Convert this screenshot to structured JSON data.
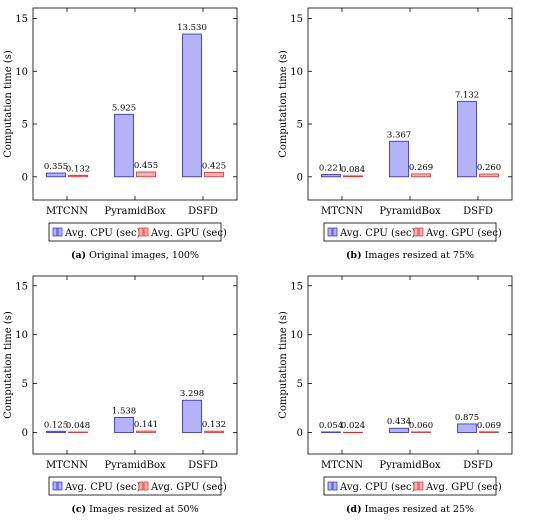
{
  "legend": {
    "cpu": "Avg. CPU (sec)",
    "gpu": "Avg. GPU (sec)"
  },
  "colors": {
    "cpu_fill": "#b3b3f5",
    "cpu_stroke": "#2222ee",
    "gpu_fill": "#f5b3b3",
    "gpu_stroke": "#ee2222"
  },
  "chart_data": [
    {
      "type": "bar",
      "caption_label": "(a)",
      "caption_text": "Original images, 100%",
      "categories": [
        "MTCNN",
        "PyramidBox",
        "DSFD"
      ],
      "series": [
        {
          "name": "Avg. CPU (sec)",
          "values": [
            0.355,
            5.925,
            13.53
          ],
          "labels": [
            "0.355",
            "5.925",
            "13.530"
          ]
        },
        {
          "name": "Avg. GPU (sec)",
          "values": [
            0.132,
            0.455,
            0.425
          ],
          "labels": [
            "0.132",
            "0.455",
            "0.425"
          ]
        }
      ],
      "ylabel": "Computation time (s)",
      "ylim": [
        -2.2,
        16
      ],
      "yticks": [
        0,
        5,
        10,
        15
      ],
      "ytick_labels": [
        "0",
        "5",
        "10",
        "15"
      ],
      "legend_position": "bottom"
    },
    {
      "type": "bar",
      "caption_label": "(b)",
      "caption_text": "Images resized at 75%",
      "categories": [
        "MTCNN",
        "PyramidBox",
        "DSFD"
      ],
      "series": [
        {
          "name": "Avg. CPU (sec)",
          "values": [
            0.221,
            3.367,
            7.132
          ],
          "labels": [
            "0.221",
            "3.367",
            "7.132"
          ]
        },
        {
          "name": "Avg. GPU (sec)",
          "values": [
            0.084,
            0.269,
            0.26
          ],
          "labels": [
            "0.084",
            "0.269",
            "0.260"
          ]
        }
      ],
      "ylabel": "Computation time (s)",
      "ylim": [
        -2.2,
        16
      ],
      "yticks": [
        0,
        5,
        10,
        15
      ],
      "ytick_labels": [
        "0",
        "5",
        "10",
        "15"
      ],
      "legend_position": "bottom"
    },
    {
      "type": "bar",
      "caption_label": "(c)",
      "caption_text": "Images resized at 50%",
      "categories": [
        "MTCNN",
        "PyramidBox",
        "DSFD"
      ],
      "series": [
        {
          "name": "Avg. CPU (sec)",
          "values": [
            0.125,
            1.538,
            3.298
          ],
          "labels": [
            "0.125",
            "1.538",
            "3.298"
          ]
        },
        {
          "name": "Avg. GPU (sec)",
          "values": [
            0.048,
            0.141,
            0.132
          ],
          "labels": [
            "0.048",
            "0.141",
            "0.132"
          ]
        }
      ],
      "ylabel": "Computation time (s)",
      "ylim": [
        -2.2,
        16
      ],
      "yticks": [
        0,
        5,
        10,
        15
      ],
      "ytick_labels": [
        "0",
        "5",
        "10",
        "15"
      ],
      "legend_position": "bottom"
    },
    {
      "type": "bar",
      "caption_label": "(d)",
      "caption_text": "Images resized at 25%",
      "categories": [
        "MTCNN",
        "PyramidBox",
        "DSFD"
      ],
      "series": [
        {
          "name": "Avg. CPU (sec)",
          "values": [
            0.054,
            0.434,
            0.875
          ],
          "labels": [
            "0.054",
            "0.434",
            "0.875"
          ]
        },
        {
          "name": "Avg. GPU (sec)",
          "values": [
            0.024,
            0.06,
            0.069
          ],
          "labels": [
            "0.024",
            "0.060",
            "0.069"
          ]
        }
      ],
      "ylabel": "Computation time (s)",
      "ylim": [
        -2.2,
        16
      ],
      "yticks": [
        0,
        5,
        10,
        15
      ],
      "ytick_labels": [
        "0",
        "5",
        "10",
        "15"
      ],
      "legend_position": "bottom"
    }
  ]
}
